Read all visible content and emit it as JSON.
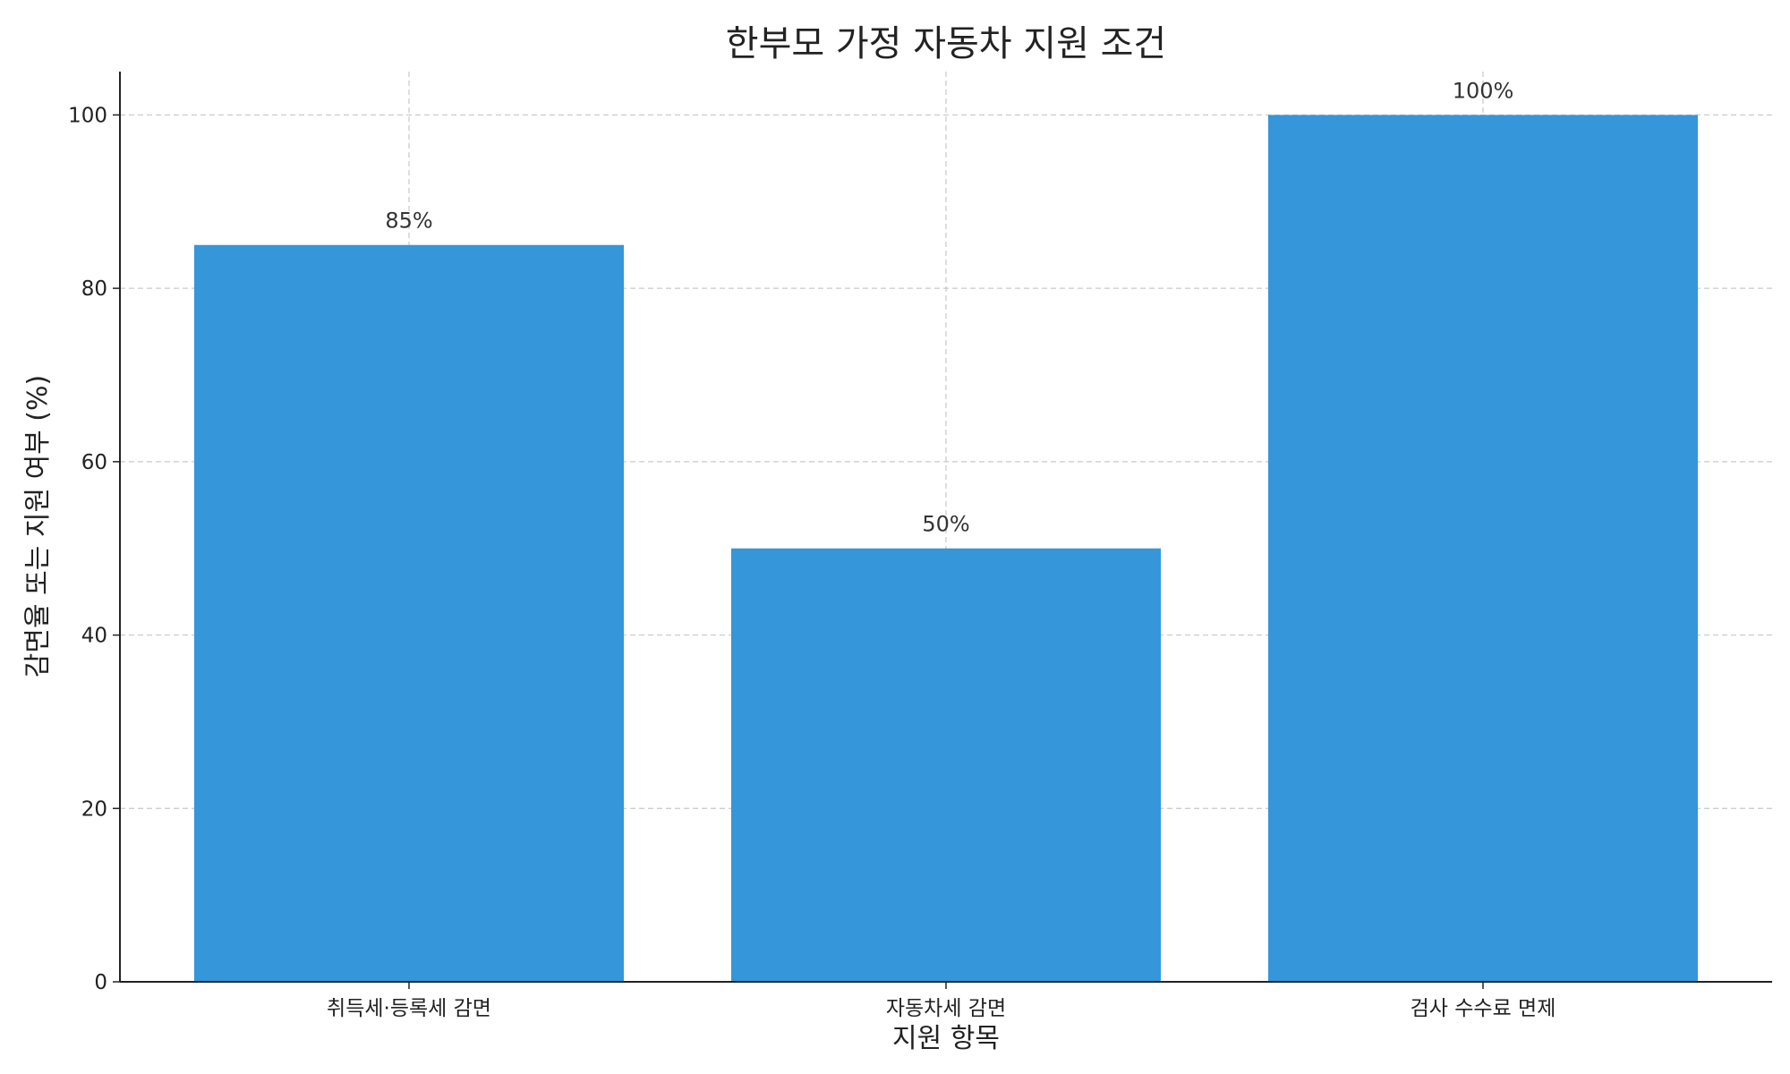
{
  "chart_data": {
    "type": "bar",
    "title": "한부모 가정 자동차 지원 조건",
    "xlabel": "지원 항목",
    "ylabel": "감면율 또는 지원 여부 (%)",
    "categories": [
      "취득세·등록세 감면",
      "자동차세 감면",
      "검사 수수료 면제"
    ],
    "values": [
      85,
      50,
      100
    ],
    "bar_labels": [
      "85%",
      "50%",
      "100%"
    ],
    "ylim": [
      0,
      105
    ],
    "yticks": [
      0,
      20,
      40,
      60,
      80,
      100
    ],
    "grid": true,
    "bar_color": "#3596da"
  }
}
